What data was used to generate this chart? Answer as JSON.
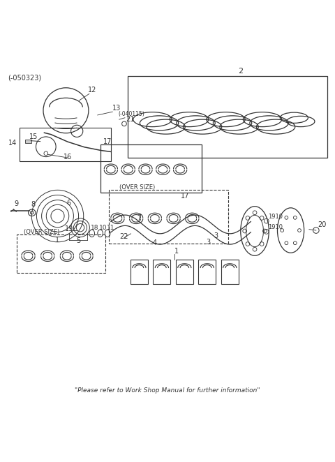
{
  "bg_color": "#ffffff",
  "line_color": "#333333",
  "fig_width": 4.8,
  "fig_height": 6.62,
  "dpi": 100,
  "top_left_label": "(-050323)",
  "bottom_text": "\"Please refer to Work Shop Manual for further information\""
}
